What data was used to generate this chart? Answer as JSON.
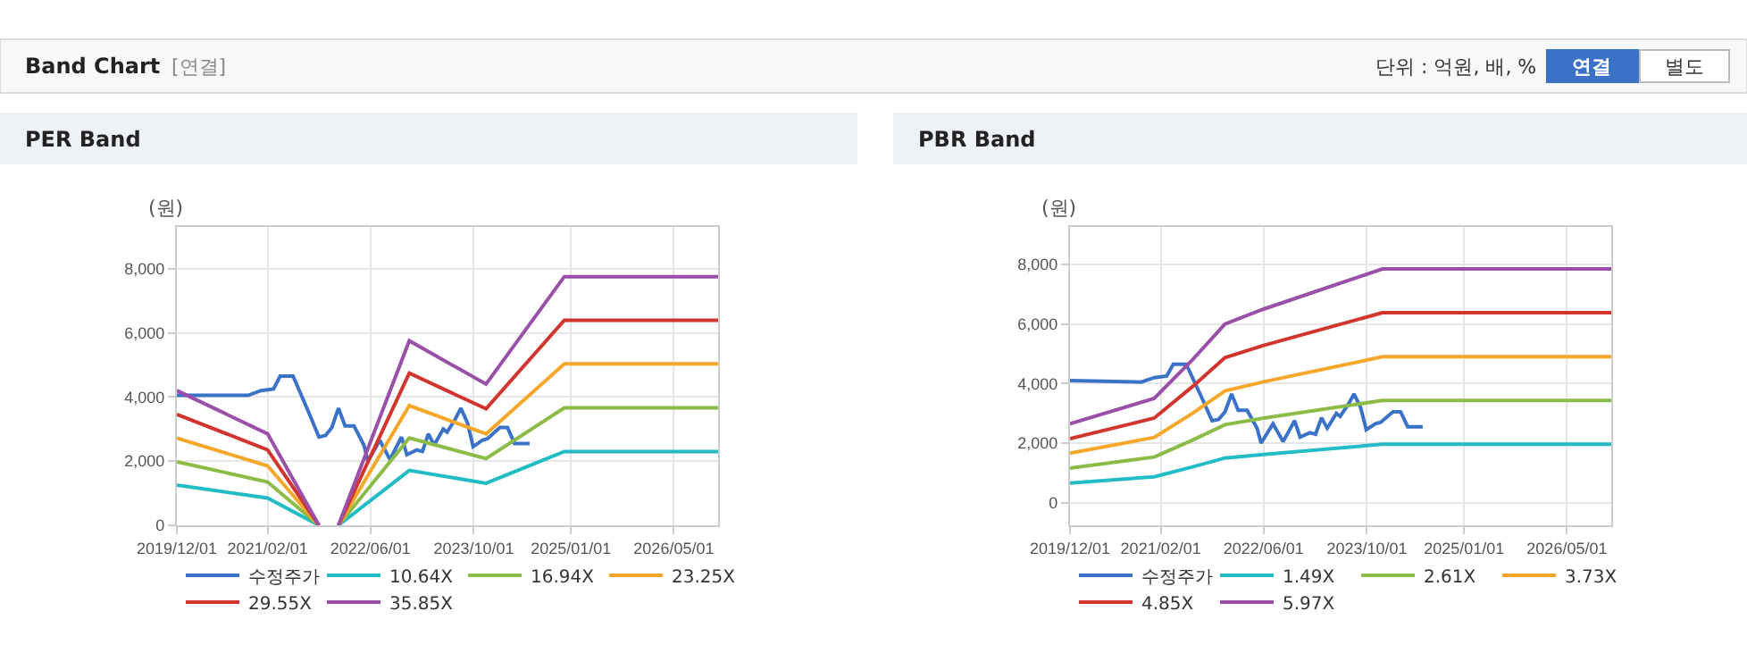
{
  "chart_data": [
    {
      "type": "other",
      "title": "Band Chart",
      "annotations": [
        "[연결]",
        "단위 : 억원, 배, %",
        "연결",
        "별도"
      ]
    },
    {
      "type": "line",
      "title": "PER Band",
      "ylabel": "(원)",
      "grid": true,
      "legend": "bottom",
      "marker": "none",
      "xlim": [
        "2019-12-01",
        "2026-11-26"
      ],
      "ylim": [
        0,
        9300
      ],
      "xticks": [
        {
          "value": "2019-12-01",
          "label": "2019/12/01"
        },
        {
          "value": "2021-02-01",
          "label": "2021/02/01"
        },
        {
          "value": "2022-06-01",
          "label": "2022/06/01"
        },
        {
          "value": "2023-10-01",
          "label": "2023/10/01"
        },
        {
          "value": "2025-01-01",
          "label": "2025/01/01"
        },
        {
          "value": "2026-05-01",
          "label": "2026/05/01"
        }
      ],
      "yticks": [
        0,
        {
          "value": 2000,
          "label": "2,000"
        },
        {
          "value": 4000,
          "label": "4,000"
        },
        {
          "value": 6000,
          "label": "6,000"
        },
        {
          "value": 8000,
          "label": "8,000"
        }
      ],
      "series": [
        {
          "name": "수정주가",
          "color": "#3a72c8",
          "x": [
            "2019-12-01",
            "2020-11-01",
            "2021-01-01",
            "2021-03-01",
            "2021-04-01",
            "2021-06-01",
            "2021-08-15",
            "2021-10-01",
            "2021-11-01",
            "2021-12-01",
            "2022-01-01",
            "2022-02-01",
            "2022-03-15",
            "2022-05-01",
            "2022-05-20",
            "2022-07-15",
            "2022-09-01",
            "2022-09-28",
            "2022-10-25",
            "2022-11-20",
            "2023-01-05",
            "2023-02-01",
            "2023-03-01",
            "2023-03-28",
            "2023-05-10",
            "2023-05-28",
            "2023-07-05",
            "2023-08-01",
            "2023-09-01",
            "2023-09-28",
            "2023-11-10",
            "2023-12-05",
            "2024-02-01",
            "2024-03-08",
            "2024-04-10",
            "2024-06-20"
          ],
          "values": [
            4050,
            4050,
            4200,
            4250,
            4650,
            4650,
            3500,
            2750,
            2800,
            3050,
            3650,
            3100,
            3100,
            2500,
            2000,
            2650,
            2050,
            2400,
            2750,
            2200,
            2350,
            2300,
            2850,
            2500,
            3000,
            2900,
            3300,
            3650,
            3200,
            2450,
            2650,
            2700,
            3050,
            3050,
            2550,
            2550
          ]
        },
        {
          "name": "10.64X",
          "color": "#22bcc4",
          "x": [
            "2019-12-01",
            "2021-02-01",
            "2021-10-01",
            "2021-11-15",
            "2022-01-01",
            "2022-12-01",
            "2023-11-28",
            "2024-12-01",
            "2026-11-26"
          ],
          "values": [
            1250,
            850,
            0,
            null,
            0,
            1710,
            1310,
            2300,
            2300
          ]
        },
        {
          "name": "16.94X",
          "color": "#8cbb47",
          "x": [
            "2019-12-01",
            "2021-02-01",
            "2021-10-01",
            "2021-11-15",
            "2022-01-01",
            "2022-12-01",
            "2023-11-28",
            "2024-12-01",
            "2026-11-26"
          ],
          "values": [
            1980,
            1350,
            0,
            null,
            0,
            2720,
            2080,
            3660,
            3660
          ]
        },
        {
          "name": "23.25X",
          "color": "#f6a72a",
          "x": [
            "2019-12-01",
            "2021-02-01",
            "2021-10-01",
            "2021-11-15",
            "2022-01-01",
            "2022-12-01",
            "2023-11-28",
            "2024-12-01",
            "2026-11-26"
          ],
          "values": [
            2720,
            1850,
            0,
            null,
            0,
            3730,
            2850,
            5030,
            5030
          ]
        },
        {
          "name": "29.55X",
          "color": "#d1352e",
          "x": [
            "2019-12-01",
            "2021-02-01",
            "2021-10-01",
            "2021-11-15",
            "2022-01-01",
            "2022-12-01",
            "2023-11-28",
            "2024-12-01",
            "2026-11-26"
          ],
          "values": [
            3460,
            2350,
            0,
            null,
            0,
            4740,
            3630,
            6390,
            6390
          ]
        },
        {
          "name": "35.85X",
          "color": "#9a4fa8",
          "x": [
            "2019-12-01",
            "2021-02-01",
            "2021-10-01",
            "2021-11-15",
            "2022-01-01",
            "2022-12-01",
            "2023-11-28",
            "2024-12-01",
            "2026-11-26"
          ],
          "values": [
            4200,
            2850,
            0,
            null,
            0,
            5750,
            4400,
            7750,
            7750
          ]
        }
      ]
    },
    {
      "type": "line",
      "title": "PBR Band",
      "ylabel": "(원)",
      "grid": true,
      "legend": "bottom",
      "marker": "none",
      "xlim": [
        "2019-12-01",
        "2026-11-26"
      ],
      "ylim": [
        -760,
        9260
      ],
      "xticks": [
        {
          "value": "2019-12-01",
          "label": "2019/12/01"
        },
        {
          "value": "2021-02-01",
          "label": "2021/02/01"
        },
        {
          "value": "2022-06-01",
          "label": "2022/06/01"
        },
        {
          "value": "2023-10-01",
          "label": "2023/10/01"
        },
        {
          "value": "2025-01-01",
          "label": "2025/01/01"
        },
        {
          "value": "2026-05-01",
          "label": "2026/05/01"
        }
      ],
      "yticks": [
        0,
        {
          "value": 2000,
          "label": "2,000"
        },
        {
          "value": 4000,
          "label": "4,000"
        },
        {
          "value": 6000,
          "label": "6,000"
        },
        {
          "value": 8000,
          "label": "8,000"
        }
      ],
      "series": [
        {
          "name": "수정주가",
          "color": "#3a72c8",
          "x": [
            "2019-12-01",
            "2020-11-01",
            "2021-01-01",
            "2021-03-01",
            "2021-04-01",
            "2021-06-01",
            "2021-08-15",
            "2021-10-01",
            "2021-11-01",
            "2021-12-01",
            "2022-01-01",
            "2022-02-01",
            "2022-03-15",
            "2022-05-01",
            "2022-05-20",
            "2022-07-15",
            "2022-09-01",
            "2022-09-28",
            "2022-10-25",
            "2022-11-20",
            "2023-01-05",
            "2023-02-01",
            "2023-03-01",
            "2023-03-28",
            "2023-05-10",
            "2023-05-28",
            "2023-07-05",
            "2023-08-01",
            "2023-09-01",
            "2023-09-28",
            "2023-11-10",
            "2023-12-05",
            "2024-02-01",
            "2024-03-08",
            "2024-04-10",
            "2024-06-20"
          ],
          "values": [
            4100,
            4050,
            4200,
            4250,
            4650,
            4650,
            3500,
            2750,
            2800,
            3050,
            3650,
            3100,
            3100,
            2500,
            2000,
            2650,
            2050,
            2400,
            2750,
            2200,
            2350,
            2300,
            2850,
            2500,
            3000,
            2900,
            3300,
            3650,
            3200,
            2450,
            2650,
            2700,
            3050,
            3050,
            2550,
            2550
          ]
        },
        {
          "name": "1.49X",
          "color": "#22bcc4",
          "x": [
            "2019-12-01",
            "2021-01-01",
            "2021-07-01",
            "2021-12-01",
            "2022-06-01",
            "2023-12-13",
            "2026-11-26"
          ],
          "values": [
            660,
            870,
            1200,
            1500,
            1620,
            1960,
            1960
          ]
        },
        {
          "name": "2.61X",
          "color": "#8cbb47",
          "x": [
            "2019-12-01",
            "2021-01-01",
            "2021-07-01",
            "2021-12-01",
            "2022-06-01",
            "2023-12-13",
            "2026-11-26"
          ],
          "values": [
            1160,
            1530,
            2100,
            2620,
            2840,
            3430,
            3430
          ]
        },
        {
          "name": "3.73X",
          "color": "#f6a72a",
          "x": [
            "2019-12-01",
            "2021-01-01",
            "2021-07-01",
            "2021-12-01",
            "2022-06-01",
            "2023-12-13",
            "2026-11-26"
          ],
          "values": [
            1660,
            2190,
            3000,
            3750,
            4060,
            4900,
            4900
          ]
        },
        {
          "name": "4.85X",
          "color": "#d1352e",
          "x": [
            "2019-12-01",
            "2021-01-01",
            "2021-07-01",
            "2021-12-01",
            "2022-06-01",
            "2023-12-13",
            "2026-11-26"
          ],
          "values": [
            2150,
            2840,
            3900,
            4870,
            5280,
            6380,
            6380
          ]
        },
        {
          "name": "5.97X",
          "color": "#9a4fa8",
          "x": [
            "2019-12-01",
            "2021-01-01",
            "2021-07-01",
            "2021-12-01",
            "2022-06-01",
            "2023-12-13",
            "2026-11-26"
          ],
          "values": [
            2650,
            3500,
            4800,
            6000,
            6500,
            7850,
            7850
          ]
        }
      ]
    }
  ]
}
